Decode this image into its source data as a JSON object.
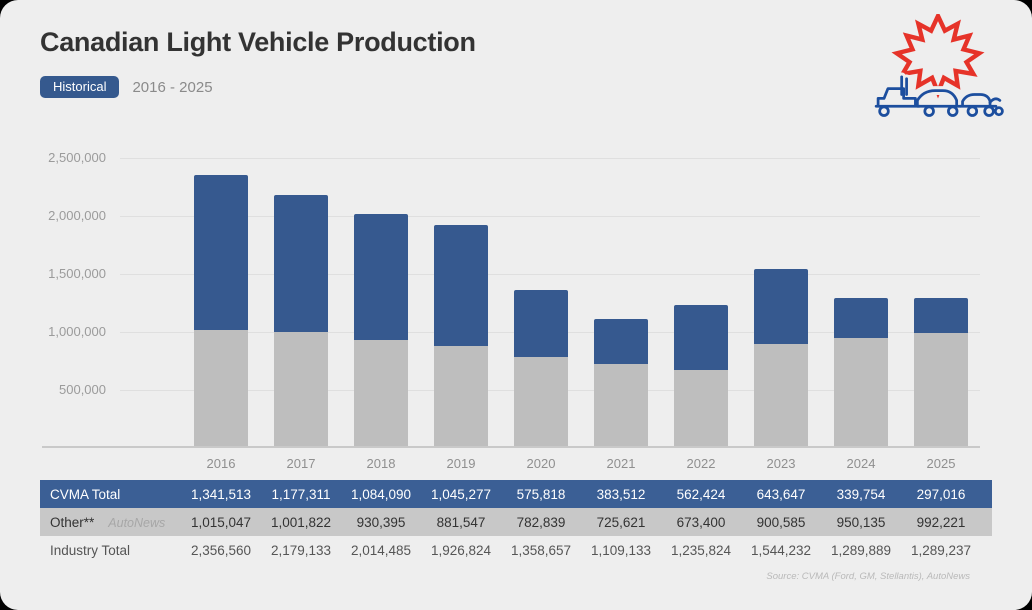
{
  "page": {
    "title": "Canadian Light Vehicle Production",
    "badge_label": "Historical",
    "period": "2016 - 2025",
    "source_note": "Source: CVMA (Ford, GM, Stellantis), AutoNews"
  },
  "colors": {
    "card_bg": "#EEEEEE",
    "accent_blue": "#36598F",
    "table_row_blue": "#3B5F95",
    "bar_gray": "#BEBEBE",
    "table_row_gray": "#C8C8C8",
    "leaf_red": "#E63329",
    "vehicle_blue": "#1C4E9E"
  },
  "icons": {
    "logo": "maple-leaf-with-vehicles"
  },
  "chart_data": {
    "type": "bar",
    "stacked": true,
    "title": "Canadian Light Vehicle Production",
    "xlabel": "",
    "ylabel": "",
    "ylim": [
      0,
      2500000
    ],
    "grid": true,
    "legend_position": "table-below",
    "categories": [
      "2016",
      "2017",
      "2018",
      "2019",
      "2020",
      "2021",
      "2022",
      "2023",
      "2024",
      "2025"
    ],
    "series": [
      {
        "name": "CVMA Total",
        "color": "#36598F",
        "stack_order": "top",
        "values": [
          1341513,
          1177311,
          1084090,
          1045277,
          575818,
          383512,
          562424,
          643647,
          339754,
          297016
        ]
      },
      {
        "name": "Other**",
        "color": "#BEBEBE",
        "stack_order": "bottom",
        "values": [
          1015047,
          1001822,
          930395,
          881547,
          782839,
          725621,
          673400,
          900585,
          950135,
          992221
        ]
      }
    ],
    "totals": {
      "name": "Industry Total",
      "values": [
        2356560,
        2179133,
        2014485,
        1926824,
        1358657,
        1109133,
        1235824,
        1544232,
        1289889,
        1289237
      ]
    },
    "yticks": [
      {
        "label": "2,500,000",
        "value": 2500000
      },
      {
        "label": "2,000,000",
        "value": 2000000
      },
      {
        "label": "1,500,000",
        "value": 1500000
      },
      {
        "label": "1,000,000",
        "value": 1000000
      },
      {
        "label": "500,000",
        "value": 500000
      }
    ]
  },
  "table": {
    "rows": [
      {
        "label": "CVMA Total",
        "style": "blue",
        "watermark": "",
        "values": [
          "1,341,513",
          "1,177,311",
          "1,084,090",
          "1,045,277",
          "575,818",
          "383,512",
          "562,424",
          "643,647",
          "339,754",
          "297,016"
        ]
      },
      {
        "label": "Other**",
        "style": "gray",
        "watermark": "AutoNews",
        "values": [
          "1,015,047",
          "1,001,822",
          "930,395",
          "881,547",
          "782,839",
          "725,621",
          "673,400",
          "900,585",
          "950,135",
          "992,221"
        ]
      },
      {
        "label": "Industry Total",
        "style": "plain",
        "watermark": "",
        "values": [
          "2,356,560",
          "2,179,133",
          "2,014,485",
          "1,926,824",
          "1,358,657",
          "1,109,133",
          "1,235,824",
          "1,544,232",
          "1,289,889",
          "1,289,237"
        ]
      }
    ]
  }
}
